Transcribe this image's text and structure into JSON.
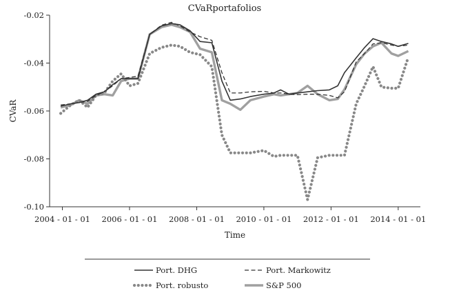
{
  "chart_data": {
    "type": "line",
    "title": "CVaRportafolios",
    "xlabel": "Time",
    "ylabel": "CVaR",
    "x_ticks": [
      "2004 - 01 - 01",
      "2006 - 01 - 01",
      "2008 - 01 - 01",
      "2010 - 01 - 01",
      "2012 - 01 - 01",
      "2014 - 01 - 01"
    ],
    "x_tick_values": [
      2004.0,
      2006.0,
      2008.0,
      2010.0,
      2012.0,
      2014.0
    ],
    "xlim": [
      2003.62,
      2014.66
    ],
    "ylim": [
      -0.1,
      -0.02
    ],
    "y_ticks": [
      -0.02,
      -0.04,
      -0.06,
      -0.08,
      -0.1
    ],
    "y_tick_labels": [
      "-0.02",
      "-0.04",
      "-0.06",
      "-0.08",
      "-0.10"
    ],
    "grid": false,
    "legend_position": "bottom",
    "x": [
      2003.95,
      2004.25,
      2004.5,
      2004.75,
      2005.0,
      2005.25,
      2005.5,
      2005.75,
      2006.0,
      2006.25,
      2006.6,
      2006.95,
      2007.25,
      2007.5,
      2007.8,
      2008.1,
      2008.45,
      2008.75,
      2009.0,
      2009.3,
      2009.6,
      2010.0,
      2010.3,
      2010.5,
      2010.75,
      2011.0,
      2011.3,
      2011.6,
      2011.95,
      2012.2,
      2012.4,
      2012.75,
      2013.0,
      2013.25,
      2013.5,
      2013.8,
      2014.0,
      2014.3
    ],
    "series": [
      {
        "name": "Port. DHG",
        "style": "solid",
        "color": "#333333",
        "values": [
          -0.058,
          -0.057,
          -0.0565,
          -0.0555,
          -0.053,
          -0.052,
          -0.049,
          -0.0465,
          -0.0465,
          -0.0465,
          -0.028,
          -0.0245,
          -0.0235,
          -0.024,
          -0.0265,
          -0.031,
          -0.0315,
          -0.0475,
          -0.0555,
          -0.055,
          -0.054,
          -0.053,
          -0.0525,
          -0.0512,
          -0.053,
          -0.0525,
          -0.052,
          -0.0515,
          -0.0512,
          -0.0495,
          -0.044,
          -0.0378,
          -0.0335,
          -0.0298,
          -0.031,
          -0.032,
          -0.033,
          -0.0318
        ]
      },
      {
        "name": "Port. Markowitz",
        "style": "dashed",
        "color": "#333333",
        "values": [
          -0.0575,
          -0.057,
          -0.0565,
          -0.056,
          -0.0535,
          -0.052,
          -0.0495,
          -0.0465,
          -0.046,
          -0.0455,
          -0.028,
          -0.0242,
          -0.023,
          -0.0245,
          -0.027,
          -0.029,
          -0.0305,
          -0.044,
          -0.0525,
          -0.0525,
          -0.052,
          -0.0518,
          -0.0525,
          -0.0525,
          -0.053,
          -0.0532,
          -0.053,
          -0.053,
          -0.0535,
          -0.0545,
          -0.052,
          -0.0395,
          -0.036,
          -0.032,
          -0.0315,
          -0.0325,
          -0.033,
          -0.0325
        ]
      },
      {
        "name": "Port. robusto",
        "style": "dotted",
        "color": "#888888",
        "values": [
          -0.061,
          -0.0575,
          -0.0555,
          -0.0585,
          -0.0535,
          -0.0525,
          -0.0475,
          -0.0445,
          -0.0495,
          -0.0485,
          -0.036,
          -0.0335,
          -0.0325,
          -0.033,
          -0.0355,
          -0.0365,
          -0.0415,
          -0.07,
          -0.0775,
          -0.0775,
          -0.0775,
          -0.0765,
          -0.079,
          -0.0785,
          -0.0785,
          -0.0785,
          -0.097,
          -0.0795,
          -0.0785,
          -0.0785,
          -0.0785,
          -0.057,
          -0.0495,
          -0.0415,
          -0.05,
          -0.0505,
          -0.0505,
          -0.0375
        ]
      },
      {
        "name": "S&P 500",
        "style": "thick",
        "color": "#a0a0a0",
        "values": [
          -0.0585,
          -0.0575,
          -0.0555,
          -0.057,
          -0.0535,
          -0.053,
          -0.0535,
          -0.0475,
          -0.0465,
          -0.0465,
          -0.028,
          -0.025,
          -0.024,
          -0.025,
          -0.027,
          -0.034,
          -0.0355,
          -0.0555,
          -0.057,
          -0.0595,
          -0.0555,
          -0.054,
          -0.053,
          -0.0535,
          -0.053,
          -0.0525,
          -0.0495,
          -0.053,
          -0.0555,
          -0.055,
          -0.051,
          -0.0405,
          -0.036,
          -0.033,
          -0.0315,
          -0.036,
          -0.037,
          -0.035
        ]
      }
    ]
  }
}
